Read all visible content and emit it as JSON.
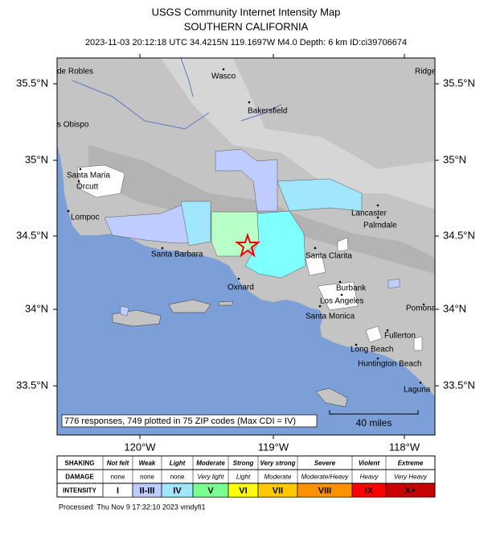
{
  "header": {
    "title": "USGS Community Internet Intensity Map",
    "subtitle": "SOUTHERN CALIFORNIA",
    "event": "2023-11-03 20:12:18 UTC 34.4215N 119.1697W M4.0 Depth: 6 km ID:ci39706674"
  },
  "map": {
    "lon_ticks": [
      "120°W",
      "119°W",
      "118°W"
    ],
    "lat_ticks": [
      "35.5°N",
      "35°N",
      "34.5°N",
      "34°N",
      "33.5°N"
    ],
    "places": [
      "de Robles",
      "Wasco",
      "Ridge",
      "s Obispo",
      "Bakersfield",
      "Santa Maria",
      "Orcutt",
      "Lompoc",
      "Lancaster",
      "Palmdale",
      "Santa Barbara",
      "Santa Clarita",
      "Oxnard",
      "Burbank",
      "Los Angeles",
      "Santa Monica",
      "Pomona",
      "Fullerton",
      "Long Beach",
      "Huntington Beach",
      "Laguna"
    ],
    "summary": "776 responses, 749 plotted in 75 ZIP codes (Max CDI = IV)",
    "scale_label": "40 miles"
  },
  "legend": {
    "row_labels": [
      "SHAKING",
      "DAMAGE",
      "INTENSITY"
    ],
    "shaking": [
      "Not felt",
      "Weak",
      "Light",
      "Moderate",
      "Strong",
      "Very strong",
      "Severe",
      "Violent",
      "Extreme"
    ],
    "damage": [
      "none",
      "none",
      "none",
      "Very light",
      "Light",
      "Moderate",
      "Moderate/Heavy",
      "Heavy",
      "Very Heavy"
    ],
    "intensity": [
      "I",
      "II-III",
      "IV",
      "V",
      "VI",
      "VII",
      "VIII",
      "IX",
      "X+"
    ],
    "colors": [
      "#ffffff",
      "#bfccff",
      "#a0e6ff",
      "#7aff93",
      "#ffff00",
      "#ffc800",
      "#ff9100",
      "#ff0000",
      "#c80000"
    ]
  },
  "footer": "Processed: Thu Nov  9 17:32:10 2023 vmdyfi1"
}
